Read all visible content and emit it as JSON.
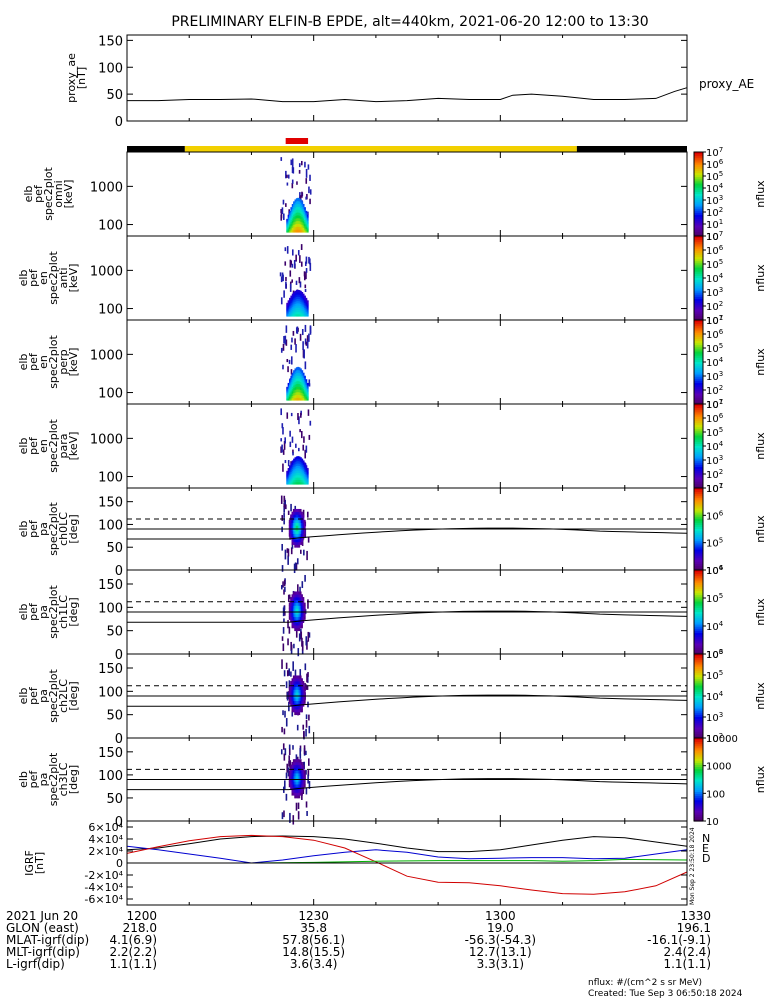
{
  "title": "PRELIMINARY ELFIN-B EPDE, alt=440km, 2021-06-20 12:00 to 13:30",
  "footer": {
    "units_note": "nflux: #/(cm^2 s sr MeV)",
    "created": "Created: Tue Sep  3 06:50:18 2024",
    "vertical_stamp": "Mon Sep  2 23:50:18 2024"
  },
  "colors": {
    "bar_black": "#000000",
    "bar_yellow": "#f2d000",
    "bar_red": "#e00000",
    "grf_n": "#000000",
    "grf_e": "#0000d0",
    "grf_d": "#d00000",
    "grf_green": "#00b000"
  },
  "time_axis": {
    "labels": [
      "1200",
      "1230",
      "1300",
      "1330"
    ],
    "minutes": [
      0,
      30,
      60,
      90
    ]
  },
  "ephemeris": {
    "rows": [
      {
        "label": "2021 Jun 20",
        "values": [
          "1200",
          "1230",
          "1300",
          "1330"
        ]
      },
      {
        "label": "GLON (east)",
        "values": [
          "218.0",
          "35.8",
          "19.0",
          "196.1"
        ]
      },
      {
        "label": "MLAT-igrf(dip)",
        "values": [
          "4.1(6.9)",
          "57.8(56.1)",
          "-56.3(-54.3)",
          "-16.1(-9.1)"
        ]
      },
      {
        "label": "MLT-igrf(dip)",
        "values": [
          "2.2(2.2)",
          "14.8(15.5)",
          "12.7(13.1)",
          "2.4(2.4)"
        ]
      },
      {
        "label": "L-igrf(dip)",
        "values": [
          "1.1(1.1)",
          "3.6(3.4)",
          "3.3(3.1)",
          "1.1(1.1)"
        ]
      }
    ]
  },
  "chart_data": [
    {
      "type": "line",
      "name": "proxy_ae",
      "ylabel": [
        "proxy_ae",
        "[nT]"
      ],
      "series_label": "proxy_AE",
      "ylim": [
        0,
        160
      ],
      "yticks": [
        0,
        50,
        100,
        150
      ],
      "x_minutes": [
        0,
        5,
        10,
        15,
        20,
        25,
        30,
        35,
        40,
        45,
        50,
        55,
        60,
        62,
        65,
        70,
        75,
        80,
        85,
        88,
        90
      ],
      "values": [
        38,
        38,
        40,
        40,
        41,
        36,
        36,
        40,
        36,
        38,
        42,
        40,
        40,
        48,
        50,
        46,
        40,
        40,
        42,
        55,
        62
      ]
    },
    {
      "type": "bar",
      "name": "science-zone-bar",
      "segments": [
        {
          "start_min": 0,
          "end_min": 9.3,
          "color": "black"
        },
        {
          "start_min": 9.3,
          "end_min": 72.3,
          "color": "yellow"
        },
        {
          "start_min": 72.3,
          "end_min": 90,
          "color": "black"
        }
      ],
      "marker": {
        "start_min": 25.5,
        "end_min": 29.1,
        "color": "red"
      }
    },
    {
      "type": "heatmap",
      "name": "spec-omni",
      "ylabel": [
        "elb",
        "pef",
        "spec2plot",
        "omni",
        "[keV]"
      ],
      "ytick_labels": [
        "100",
        "1000"
      ],
      "yticks_kev": [
        100,
        1000
      ],
      "colorbar": {
        "label": "nflux",
        "ticks": [
          "10",
          "10^1",
          "10^2",
          "10^3",
          "10^4",
          "10^5",
          "10^6",
          "10^7"
        ]
      }
    },
    {
      "type": "heatmap",
      "name": "spec-anti",
      "ylabel": [
        "elb",
        "pef",
        "en",
        "spec2plot",
        "anti",
        "[keV]"
      ],
      "ytick_labels": [
        "100",
        "1000"
      ],
      "yticks_kev": [
        100,
        1000
      ],
      "colorbar": {
        "label": "nflux",
        "ticks": [
          "10^1",
          "10^2",
          "10^3",
          "10^4",
          "10^5",
          "10^6",
          "10^7"
        ]
      }
    },
    {
      "type": "heatmap",
      "name": "spec-perp",
      "ylabel": [
        "elb",
        "pef",
        "en",
        "spec2plot",
        "perp",
        "[keV]"
      ],
      "ytick_labels": [
        "100",
        "1000"
      ],
      "yticks_kev": [
        100,
        1000
      ],
      "colorbar": {
        "label": "nflux",
        "ticks": [
          "10^1",
          "10^2",
          "10^3",
          "10^4",
          "10^5",
          "10^6",
          "10^7"
        ]
      }
    },
    {
      "type": "heatmap",
      "name": "spec-para",
      "ylabel": [
        "elb",
        "pef",
        "en",
        "spec2plot",
        "para",
        "[keV]"
      ],
      "ytick_labels": [
        "100",
        "1000"
      ],
      "yticks_kev": [
        100,
        1000
      ],
      "colorbar": {
        "label": "nflux",
        "ticks": [
          "10^1",
          "10^2",
          "10^3",
          "10^4",
          "10^5",
          "10^6",
          "10^7"
        ]
      }
    },
    {
      "type": "heatmap",
      "name": "pa-ch0",
      "ylabel": [
        "elb",
        "pef",
        "pa",
        "spec2plot",
        "ch0LC",
        "[deg]"
      ],
      "ylim": [
        0,
        180
      ],
      "yticks": [
        0,
        50,
        100,
        150
      ],
      "colorbar": {
        "label": "nflux",
        "ticks": [
          "10^4",
          "10^5",
          "10^6",
          "10^7"
        ]
      }
    },
    {
      "type": "heatmap",
      "name": "pa-ch1",
      "ylabel": [
        "elb",
        "pef",
        "pa",
        "spec2plot",
        "ch1LC",
        "[deg]"
      ],
      "ylim": [
        0,
        180
      ],
      "yticks": [
        0,
        50,
        100,
        150
      ],
      "colorbar": {
        "label": "nflux",
        "ticks": [
          "10^3",
          "10^4",
          "10^5",
          "10^6"
        ]
      }
    },
    {
      "type": "heatmap",
      "name": "pa-ch2",
      "ylabel": [
        "elb",
        "pef",
        "pa",
        "spec2plot",
        "ch2LC",
        "[deg]"
      ],
      "ylim": [
        0,
        180
      ],
      "yticks": [
        0,
        50,
        100,
        150
      ],
      "colorbar": {
        "label": "nflux",
        "ticks": [
          "10^2",
          "10^3",
          "10^4",
          "10^5",
          "10^6"
        ]
      }
    },
    {
      "type": "heatmap",
      "name": "pa-ch3",
      "ylabel": [
        "elb",
        "pef",
        "pa",
        "spec2plot",
        "ch3LC",
        "[deg]"
      ],
      "ylim": [
        0,
        180
      ],
      "yticks": [
        0,
        50,
        100,
        150
      ],
      "colorbar": {
        "label": "nflux",
        "ticks": [
          "10",
          "100",
          "1000",
          "10000"
        ]
      }
    },
    {
      "type": "line",
      "name": "igrf",
      "ylabel": [
        "IGRF",
        "[nT]"
      ],
      "ylim": [
        -70000,
        70000
      ],
      "ytick_values": [
        -60000,
        -40000,
        -20000,
        0,
        20000,
        40000,
        60000
      ],
      "ytick_labels": [
        "-6×10⁴",
        "-4×10⁴",
        "-2×10⁴",
        "0",
        "2×10⁴",
        "4×10⁴",
        "6×10⁴"
      ],
      "legend": [
        "N",
        "E",
        "D"
      ],
      "series": [
        {
          "name": "N",
          "color": "black",
          "x_minutes": [
            0,
            5,
            10,
            15,
            20,
            25,
            30,
            35,
            40,
            45,
            50,
            55,
            60,
            65,
            70,
            75,
            80,
            85,
            90
          ],
          "values": [
            22000,
            25000,
            32000,
            40000,
            44000,
            45000,
            44000,
            40000,
            33000,
            25000,
            19000,
            19000,
            22000,
            30000,
            38000,
            44000,
            42000,
            35000,
            28000
          ]
        },
        {
          "name": "E",
          "color": "blue",
          "x_minutes": [
            0,
            5,
            10,
            15,
            20,
            25,
            30,
            35,
            40,
            45,
            50,
            55,
            60,
            65,
            70,
            75,
            80,
            85,
            90
          ],
          "values": [
            28000,
            22000,
            15000,
            8000,
            0,
            5000,
            12000,
            18000,
            22000,
            18000,
            10000,
            7000,
            8000,
            9000,
            9000,
            7000,
            8000,
            15000,
            22000
          ]
        },
        {
          "name": "D",
          "color": "red",
          "x_minutes": [
            0,
            5,
            10,
            15,
            20,
            25,
            30,
            35,
            40,
            45,
            50,
            55,
            60,
            65,
            70,
            75,
            80,
            85,
            90
          ],
          "values": [
            16000,
            27000,
            37000,
            44000,
            46000,
            44000,
            38000,
            25000,
            2000,
            -22000,
            -32000,
            -33000,
            -38000,
            -45000,
            -51000,
            -52000,
            -48000,
            -38000,
            -15000
          ]
        },
        {
          "name": "green",
          "color": "green",
          "x_minutes": [
            12,
            20,
            30,
            40,
            50,
            60,
            65,
            70,
            75,
            80,
            90
          ],
          "values": [
            0,
            0,
            1000,
            3000,
            4000,
            4000,
            4000,
            3000,
            4000,
            6000,
            5000
          ]
        }
      ]
    }
  ]
}
